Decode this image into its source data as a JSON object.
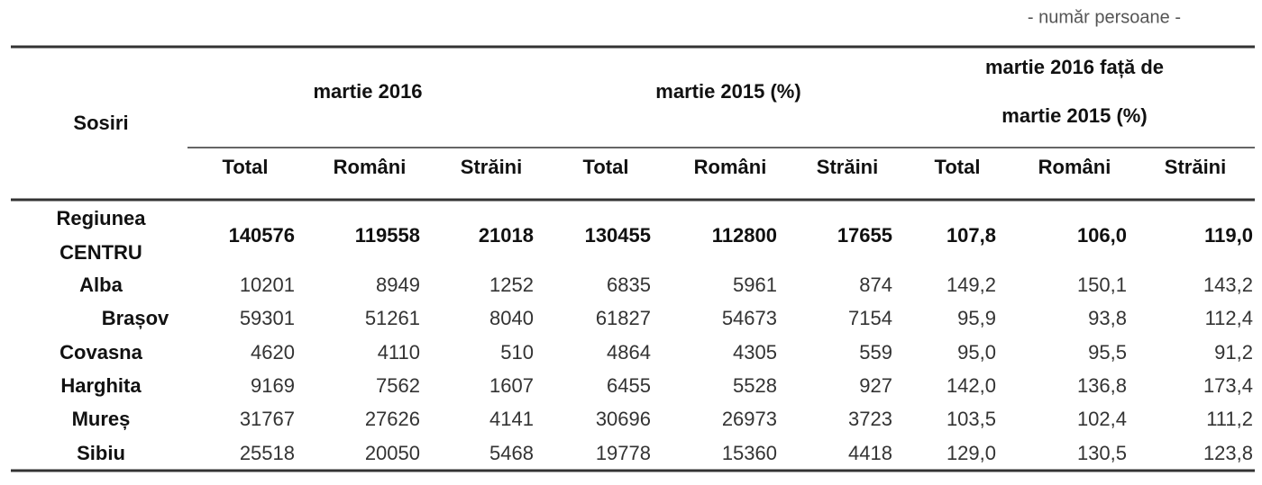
{
  "note": "- număr persoane -",
  "table": {
    "header": {
      "row_label": "Sosiri",
      "groups": [
        [
          "martie 2016"
        ],
        [
          "martie 2015 (%)"
        ],
        [
          "martie 2016 față de",
          "martie 2015 (%)"
        ]
      ],
      "columns": [
        "Total",
        "Români",
        "Străini",
        "Total",
        "Români",
        "Străini",
        "Total",
        "Români",
        "Străini"
      ]
    },
    "rows": [
      {
        "label": [
          "Regiunea",
          "CENTRU"
        ],
        "cells": [
          "140576",
          "119558",
          "21018",
          "130455",
          "112800",
          "17655",
          "107,8",
          "106,0",
          "119,0"
        ]
      },
      {
        "label": [
          "Alba"
        ],
        "cells": [
          "10201",
          "8949",
          "1252",
          "6835",
          "5961",
          "874",
          "149,2",
          "150,1",
          "143,2"
        ]
      },
      {
        "label": [
          "Brașov"
        ],
        "cells": [
          "59301",
          "51261",
          "8040",
          "61827",
          "54673",
          "7154",
          "95,9",
          "93,8",
          "112,4"
        ]
      },
      {
        "label": [
          "Covasna"
        ],
        "cells": [
          "4620",
          "4110",
          "510",
          "4864",
          "4305",
          "559",
          "95,0",
          "95,5",
          "91,2"
        ]
      },
      {
        "label": [
          "Harghita"
        ],
        "cells": [
          "9169",
          "7562",
          "1607",
          "6455",
          "5528",
          "927",
          "142,0",
          "136,8",
          "173,4"
        ]
      },
      {
        "label": [
          "Mureș"
        ],
        "cells": [
          "31767",
          "27626",
          "4141",
          "30696",
          "26973",
          "3723",
          "103,5",
          "102,4",
          "111,2"
        ]
      },
      {
        "label": [
          "Sibiu"
        ],
        "cells": [
          "25518",
          "20050",
          "5468",
          "19778",
          "15360",
          "4418",
          "129,0",
          "130,5",
          "123,8"
        ]
      }
    ]
  }
}
